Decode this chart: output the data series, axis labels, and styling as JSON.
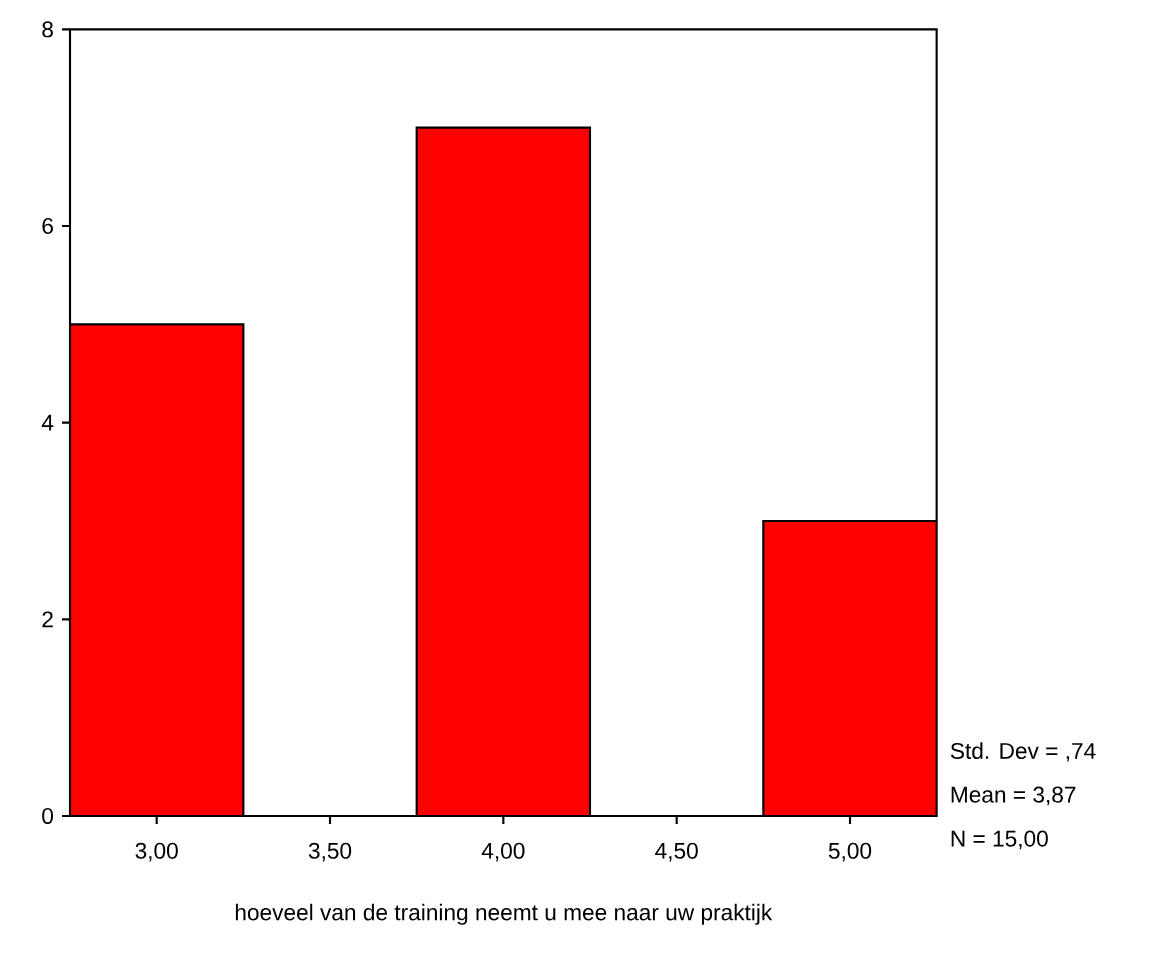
{
  "chart_data": {
    "type": "histogram",
    "xlabel": "hoeveel van de training neemt u mee naar uw praktijk",
    "bins": [
      2.75,
      3.25,
      3.75,
      4.25,
      4.75,
      5.25
    ],
    "values": [
      5,
      0,
      7,
      0,
      3
    ],
    "color": "#ff0000",
    "xlim": [
      2.75,
      5.25
    ],
    "xticks": [
      {
        "value": 3,
        "label": "3,00"
      },
      {
        "value": 3.5,
        "label": "3,50"
      },
      {
        "value": 4,
        "label": "4,00"
      },
      {
        "value": 4.5,
        "label": "4,50"
      },
      {
        "value": 5,
        "label": "5,00"
      }
    ],
    "ylim": [
      0,
      8
    ],
    "yticks": [
      0,
      2,
      4,
      6,
      8
    ],
    "annotations": [
      "Std. Dev = ,74",
      "Mean = 3,87",
      "N = 15,00"
    ]
  }
}
